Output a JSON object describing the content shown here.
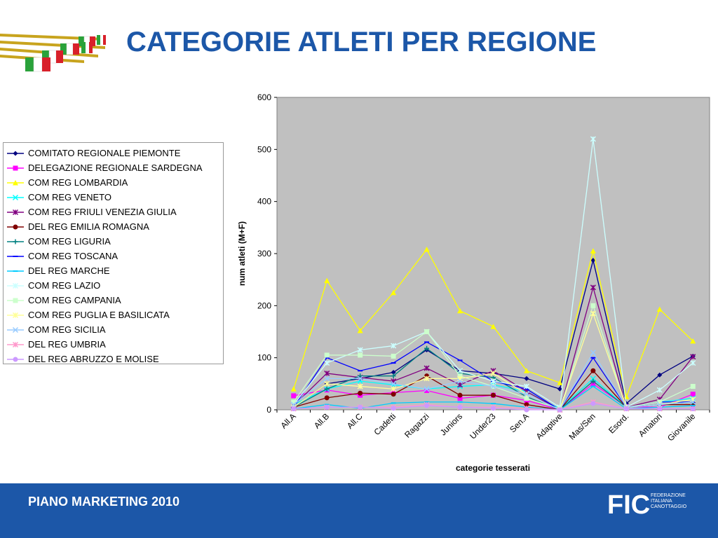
{
  "title": "CATEGORIE ATLETI PER REGIONE",
  "footer": {
    "text": "PIANO MARKETING 2010",
    "logo_mark": "FIC",
    "logo_sub": [
      "FEDERAZIONE",
      "ITALIANA",
      "CANOTTAGGIO"
    ]
  },
  "chart_data": {
    "type": "line",
    "title": "",
    "xlabel": "categorie tesserati",
    "ylabel": "num atleti (M+F)",
    "ylim": [
      0,
      600
    ],
    "yticks": [
      0,
      100,
      200,
      300,
      400,
      500,
      600
    ],
    "grid": false,
    "plot_background": "#c0c0c0",
    "legend_position": "left",
    "categories": [
      "All.A",
      "All.B",
      "All.C",
      "Cadetti",
      "Ragazzi",
      "Juniors",
      "Under23",
      "Sen.A",
      "Adaptive",
      "Mas/Sen",
      "Esord.",
      "Amatori",
      "Giovanile"
    ],
    "series": [
      {
        "name": "COMITATO REGIONALE PIEMONTE",
        "color": "#000080",
        "marker": "diamond",
        "values": [
          5,
          50,
          60,
          72,
          115,
          75,
          70,
          60,
          40,
          287,
          12,
          67,
          103
        ]
      },
      {
        "name": "DELEGAZIONE REGIONALE SARDEGNA",
        "color": "#ff00ff",
        "marker": "square",
        "values": [
          27,
          38,
          28,
          33,
          37,
          22,
          28,
          18,
          0,
          50,
          6,
          5,
          30
        ]
      },
      {
        "name": "COM REG LOMBARDIA",
        "color": "#ffff00",
        "marker": "triangle",
        "values": [
          40,
          248,
          152,
          225,
          308,
          190,
          160,
          75,
          52,
          305,
          25,
          193,
          132
        ]
      },
      {
        "name": "COM REG VENETO",
        "color": "#00ffff",
        "marker": "x",
        "values": [
          10,
          40,
          55,
          48,
          40,
          45,
          48,
          35,
          2,
          60,
          5,
          15,
          22
        ]
      },
      {
        "name": "COM REG FRIULI VENEZIA GIULIA",
        "color": "#800080",
        "marker": "star",
        "values": [
          8,
          70,
          62,
          55,
          80,
          48,
          75,
          35,
          0,
          235,
          5,
          20,
          102
        ]
      },
      {
        "name": "DEL REG EMILIA ROMAGNA",
        "color": "#800000",
        "marker": "circle",
        "values": [
          5,
          23,
          32,
          30,
          65,
          28,
          28,
          10,
          0,
          75,
          5,
          10,
          10
        ]
      },
      {
        "name": "COM REG LIGURIA",
        "color": "#008080",
        "marker": "plus",
        "values": [
          5,
          40,
          65,
          65,
          118,
          70,
          62,
          25,
          0,
          55,
          5,
          10,
          15
        ]
      },
      {
        "name": "COM REG TOSCANA",
        "color": "#0000ff",
        "marker": "dash",
        "values": [
          5,
          100,
          75,
          90,
          130,
          95,
          55,
          40,
          0,
          100,
          5,
          15,
          15
        ]
      },
      {
        "name": "DEL REG MARCHE",
        "color": "#00ccff",
        "marker": "dash",
        "values": [
          2,
          10,
          3,
          13,
          15,
          15,
          12,
          5,
          0,
          45,
          2,
          5,
          8
        ]
      },
      {
        "name": "COM REG LAZIO",
        "color": "#ccffff",
        "marker": "star",
        "values": [
          10,
          90,
          115,
          123,
          150,
          75,
          55,
          45,
          5,
          520,
          5,
          38,
          90
        ]
      },
      {
        "name": "COM REG CAMPANIA",
        "color": "#ccffcc",
        "marker": "square",
        "values": [
          15,
          105,
          105,
          103,
          150,
          65,
          45,
          22,
          2,
          200,
          5,
          15,
          45
        ]
      },
      {
        "name": "COM REG PUGLIA E BASILICATA",
        "color": "#ffff99",
        "marker": "star",
        "values": [
          5,
          50,
          45,
          40,
          60,
          60,
          70,
          30,
          0,
          185,
          5,
          10,
          20
        ]
      },
      {
        "name": "COM REG SICILIA",
        "color": "#99ccff",
        "marker": "x",
        "values": [
          10,
          60,
          60,
          50,
          40,
          55,
          45,
          30,
          0,
          110,
          5,
          10,
          15
        ]
      },
      {
        "name": "DEL REG UMBRIA",
        "color": "#ff99cc",
        "marker": "star",
        "values": [
          2,
          5,
          5,
          5,
          10,
          5,
          5,
          3,
          0,
          15,
          2,
          2,
          2
        ]
      },
      {
        "name": "DEL REG ABRUZZO E MOLISE",
        "color": "#cc99ff",
        "marker": "circle",
        "values": [
          2,
          5,
          5,
          3,
          8,
          5,
          3,
          0,
          0,
          12,
          2,
          2,
          2
        ]
      }
    ]
  }
}
